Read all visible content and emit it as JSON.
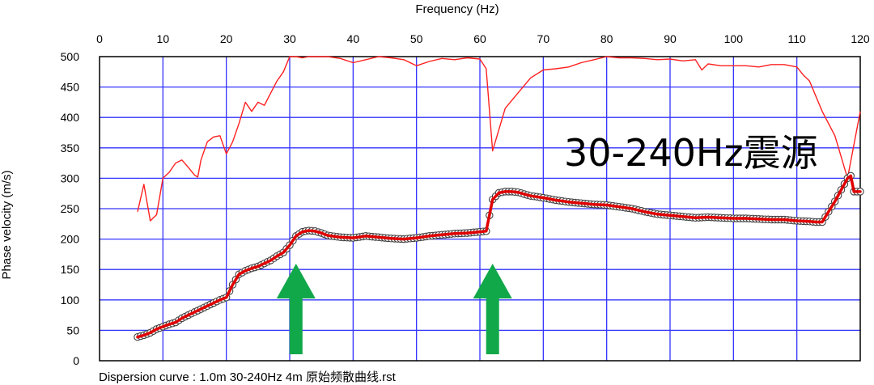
{
  "chart_data": {
    "type": "line",
    "xlabel": "Frequency (Hz)",
    "ylabel": "Phase velocity (m/s)",
    "caption": "Dispersion curve : 1.0m  30-240Hz  4m  原始频散曲线.rst",
    "annotation": "30-240Hz震源",
    "xlim": [
      0,
      120
    ],
    "ylim": [
      0,
      500
    ],
    "x_ticks": [
      0,
      10,
      20,
      30,
      40,
      50,
      60,
      70,
      80,
      90,
      100,
      110,
      120
    ],
    "y_ticks": [
      0,
      50,
      100,
      150,
      200,
      250,
      300,
      350,
      400,
      450,
      500
    ],
    "grid": true,
    "colors": {
      "grid": "#3333ff",
      "upper_curve": "#ff2020",
      "dispersion_line": "#e00000",
      "dispersion_points": "#404040",
      "arrow": "#11a84a"
    },
    "series": [
      {
        "x": [
          6,
          7,
          8,
          9,
          10,
          11,
          12,
          13,
          14,
          15,
          15.5,
          16,
          17,
          18,
          19,
          20,
          21,
          22,
          23,
          24,
          25,
          26,
          27,
          28,
          29,
          30,
          31,
          32,
          33,
          34,
          36,
          38,
          40,
          42,
          44,
          46,
          48,
          50,
          52,
          54,
          56,
          58,
          60,
          61,
          62,
          63,
          64,
          66,
          68,
          70,
          72,
          74,
          76,
          78,
          80,
          82,
          84,
          86,
          88,
          90,
          92,
          94,
          95,
          96,
          98,
          100,
          102,
          104,
          106,
          108,
          110,
          111,
          112,
          114,
          116,
          118,
          120
        ],
        "values": [
          245,
          290,
          230,
          240,
          300,
          310,
          325,
          330,
          318,
          305,
          302,
          330,
          360,
          368,
          370,
          340,
          360,
          390,
          425,
          410,
          425,
          420,
          440,
          460,
          475,
          500,
          500,
          498,
          500,
          500,
          500,
          497,
          490,
          495,
          500,
          498,
          495,
          485,
          492,
          497,
          495,
          498,
          496,
          480,
          345,
          380,
          415,
          440,
          465,
          478,
          480,
          483,
          490,
          495,
          500,
          498,
          498,
          497,
          495,
          496,
          493,
          495,
          478,
          488,
          485,
          485,
          485,
          483,
          487,
          487,
          483,
          470,
          460,
          410,
          370,
          300,
          410
        ]
      },
      {
        "x": [
          6,
          7,
          8,
          9,
          10,
          11,
          12,
          13,
          14,
          15,
          16,
          17,
          18,
          19,
          20,
          21,
          22,
          23,
          24,
          25,
          26,
          27,
          28,
          29,
          30,
          31,
          32,
          33,
          34,
          35,
          36,
          38,
          40,
          42,
          44,
          46,
          48,
          50,
          52,
          54,
          56,
          58,
          60,
          61,
          62,
          63,
          64,
          65,
          66,
          67,
          68,
          70,
          72,
          74,
          76,
          78,
          80,
          82,
          84,
          86,
          88,
          90,
          92,
          94,
          96,
          98,
          100,
          102,
          104,
          106,
          108,
          110,
          112,
          113,
          114,
          116,
          118,
          118.5,
          119,
          120
        ],
        "values": [
          39,
          42,
          46,
          52,
          56,
          60,
          63,
          70,
          75,
          80,
          85,
          90,
          95,
          100,
          104,
          125,
          142,
          148,
          152,
          155,
          160,
          165,
          172,
          178,
          190,
          205,
          212,
          214,
          213,
          210,
          206,
          203,
          202,
          205,
          203,
          201,
          200,
          202,
          205,
          207,
          209,
          210,
          212,
          213,
          265,
          276,
          278,
          278,
          277,
          274,
          271,
          268,
          264,
          261,
          259,
          257,
          256,
          253,
          250,
          245,
          241,
          239,
          237,
          235,
          236,
          235,
          234,
          234,
          233,
          232,
          232,
          230,
          229,
          228,
          228,
          262,
          300,
          304,
          278,
          278
        ]
      }
    ],
    "arrows": [
      31,
      62
    ]
  }
}
